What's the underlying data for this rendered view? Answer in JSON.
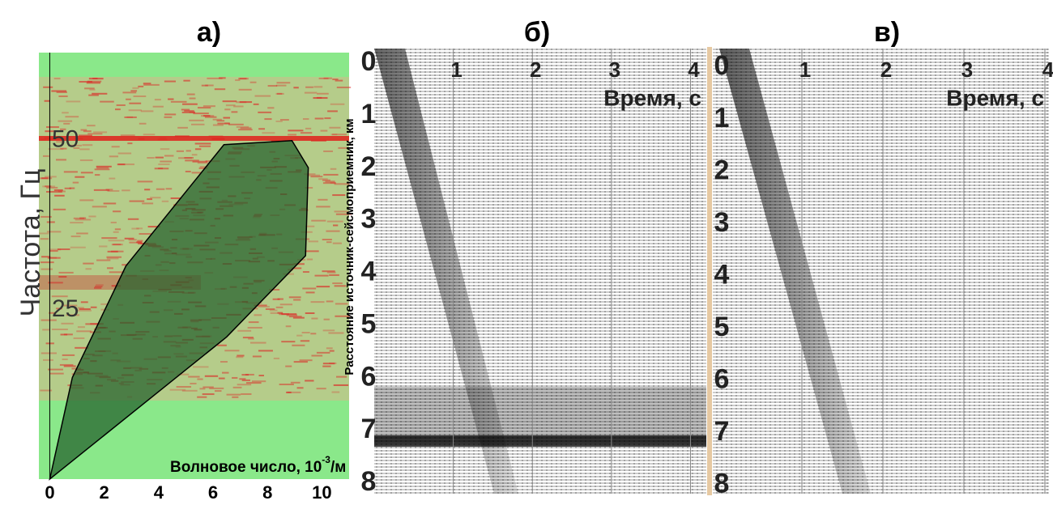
{
  "chart_data": [
    {
      "type": "fk",
      "panel_label": "а)",
      "y_label": "Частота, Гц",
      "x_label": "Волновое число, 10",
      "x_label_exponent": "-3",
      "x_label_unit": "/м",
      "xlim": [
        -0.4,
        11
      ],
      "ylim": [
        0,
        63
      ],
      "xticks": [
        0,
        2,
        4,
        6,
        8,
        10
      ],
      "yticks": [
        25,
        50
      ],
      "polygon": {
        "x": [
          0,
          0.83,
          2.8,
          6.4,
          8.9,
          9.5,
          9.4,
          6.5,
          0
        ],
        "y": [
          0,
          15,
          31.5,
          49.4,
          50,
          46,
          33,
          21,
          0
        ]
      }
    },
    {
      "type": "seismogram",
      "panel_label": "б)",
      "y_label": "Расстояние источник-сейсмоприемник, км",
      "x_label": "Время, с",
      "xlim": [
        0,
        4.2
      ],
      "ylim": [
        -0.28,
        8.2
      ],
      "xticks": [
        1,
        2,
        3,
        4
      ],
      "yticks": [
        0,
        1,
        2,
        3,
        4,
        5,
        6,
        7,
        8
      ]
    },
    {
      "type": "seismogram",
      "panel_label": "в)",
      "x_label": "Время, с",
      "xlim": [
        -0.1,
        4.05
      ],
      "ylim": [
        -0.36,
        8.16
      ],
      "xticks": [
        1,
        2,
        3,
        4
      ],
      "yticks": [
        0,
        1,
        2,
        3,
        4,
        5,
        6,
        7,
        8
      ]
    }
  ]
}
